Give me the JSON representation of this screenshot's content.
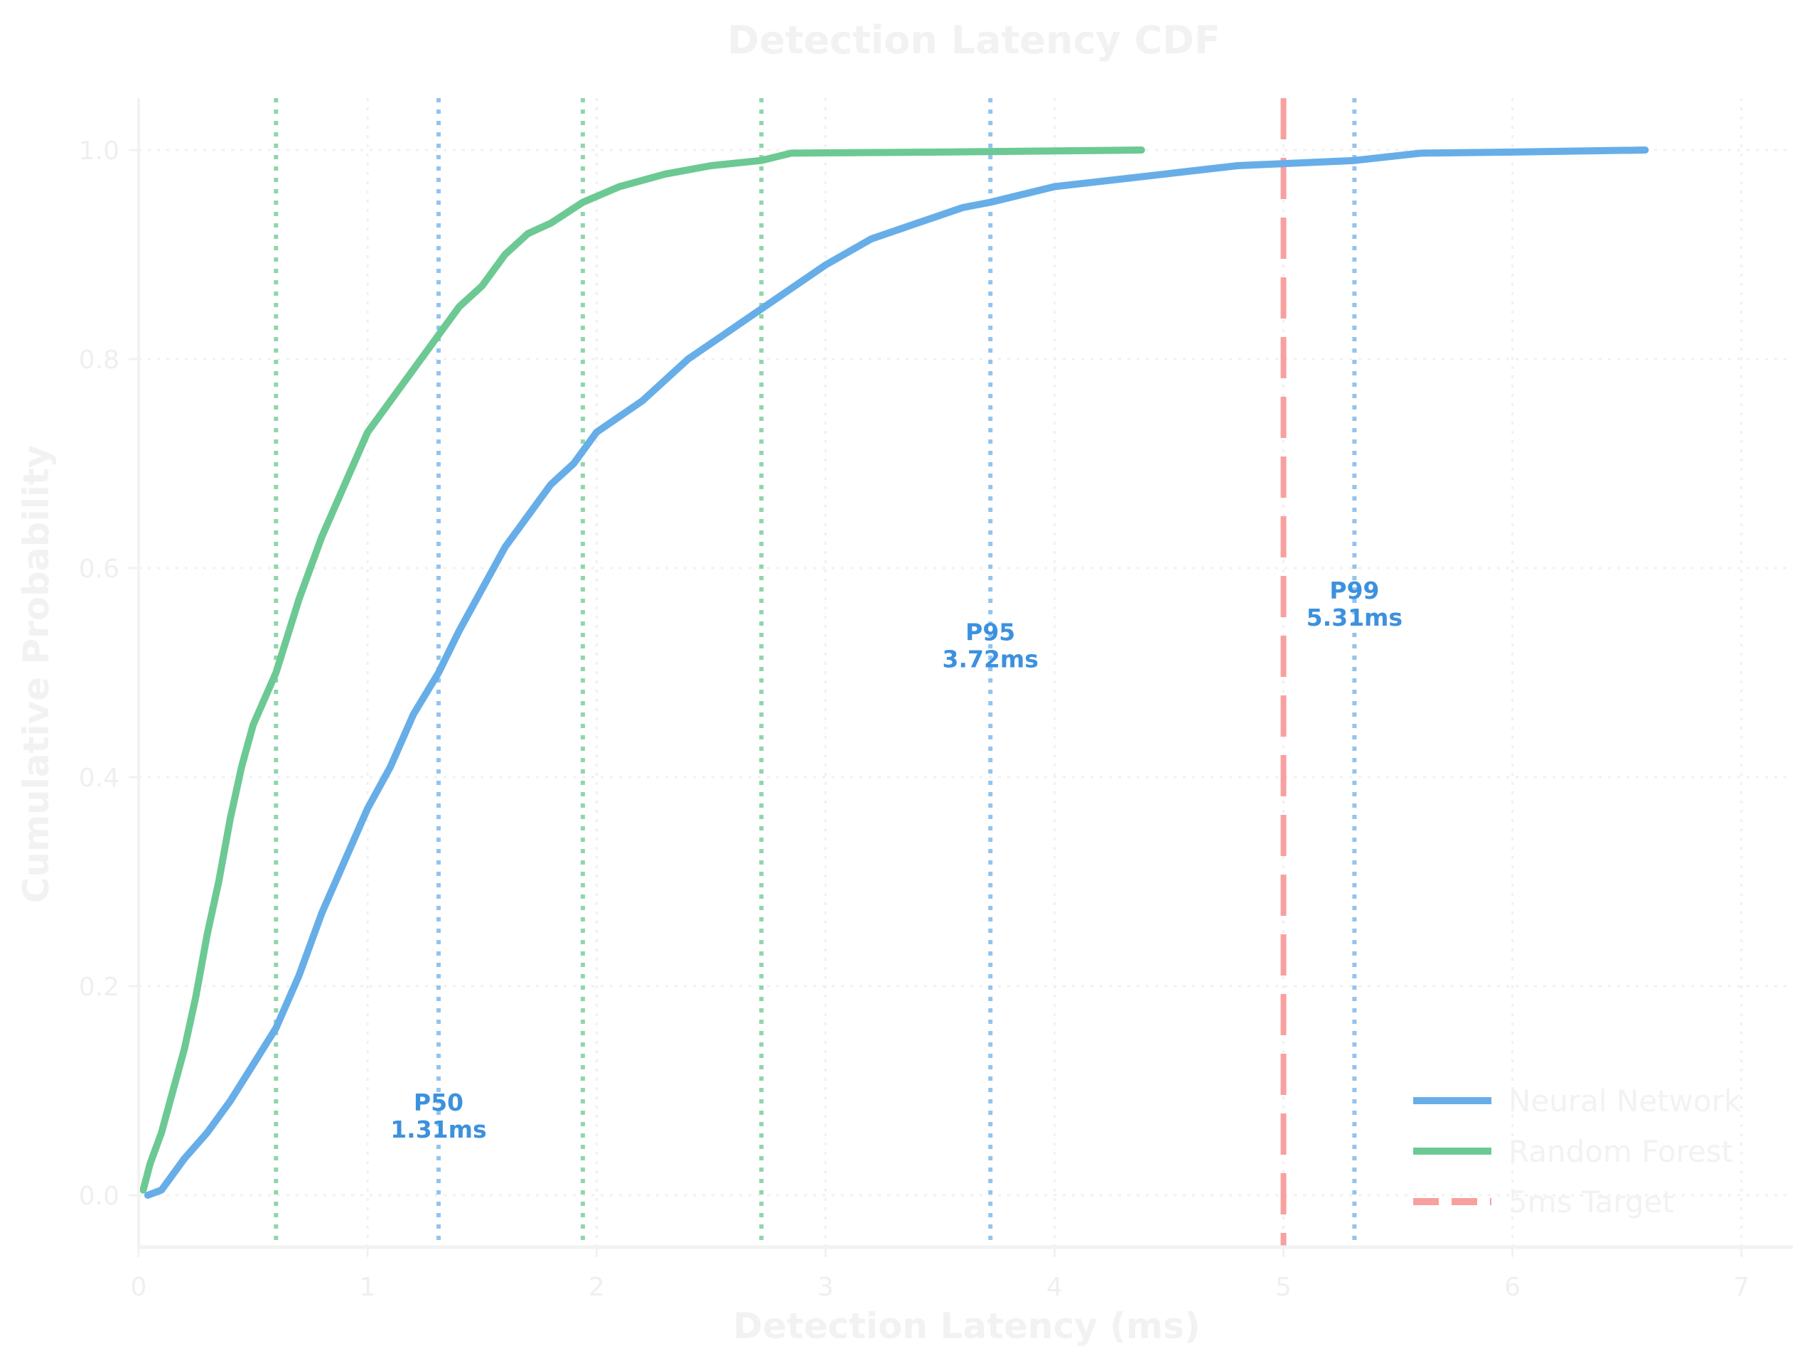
{
  "chart_data": {
    "type": "line",
    "title": "Detection Latency CDF",
    "xlabel": "Detection Latency (ms)",
    "ylabel": "Cumulative Probability",
    "xlim": [
      0,
      7.2
    ],
    "ylim": [
      -0.05,
      1.05
    ],
    "xticks": [
      "0",
      "1",
      "2",
      "3",
      "4",
      "5",
      "6",
      "7"
    ],
    "yticks": [
      "0.0",
      "0.2",
      "0.4",
      "0.6",
      "0.8",
      "1.0"
    ],
    "grid": true,
    "legend_position": "bottom-right",
    "series": [
      {
        "name": "Neural Network",
        "color": "#67aee8",
        "x": [
          0.04,
          0.1,
          0.15,
          0.2,
          0.3,
          0.4,
          0.5,
          0.6,
          0.7,
          0.8,
          0.9,
          1.0,
          1.1,
          1.2,
          1.31,
          1.4,
          1.5,
          1.6,
          1.7,
          1.8,
          1.9,
          2.0,
          2.2,
          2.4,
          2.6,
          2.8,
          3.0,
          3.2,
          3.4,
          3.6,
          3.72,
          4.0,
          4.4,
          4.8,
          5.31,
          5.6,
          6.0,
          6.58
        ],
        "y": [
          0,
          0.005,
          0.02,
          0.035,
          0.06,
          0.09,
          0.125,
          0.16,
          0.21,
          0.27,
          0.32,
          0.37,
          0.41,
          0.46,
          0.5,
          0.54,
          0.58,
          0.62,
          0.65,
          0.68,
          0.7,
          0.73,
          0.76,
          0.8,
          0.83,
          0.86,
          0.89,
          0.915,
          0.93,
          0.945,
          0.95,
          0.965,
          0.975,
          0.985,
          0.99,
          0.997,
          0.998,
          1.0
        ]
      },
      {
        "name": "Random Forest",
        "color": "#6cc993",
        "x": [
          0.02,
          0.05,
          0.1,
          0.15,
          0.2,
          0.25,
          0.3,
          0.35,
          0.4,
          0.45,
          0.5,
          0.6,
          0.7,
          0.8,
          0.9,
          1.0,
          1.1,
          1.2,
          1.3,
          1.4,
          1.5,
          1.6,
          1.7,
          1.8,
          1.94,
          2.1,
          2.3,
          2.5,
          2.72,
          2.85,
          3.5,
          4.38
        ],
        "y": [
          0.005,
          0.03,
          0.06,
          0.1,
          0.14,
          0.19,
          0.25,
          0.3,
          0.36,
          0.41,
          0.45,
          0.5,
          0.57,
          0.63,
          0.68,
          0.73,
          0.76,
          0.79,
          0.82,
          0.85,
          0.87,
          0.9,
          0.92,
          0.93,
          0.95,
          0.965,
          0.977,
          0.985,
          0.99,
          0.997,
          0.998,
          1.0
        ]
      }
    ],
    "reference_lines": [
      {
        "name": "5ms Target",
        "x": 5.0,
        "color": "#f8a0a0",
        "style": "dashed"
      }
    ],
    "percentile_lines": [
      {
        "series": "Random Forest",
        "x": 0.6,
        "color": "#8fd6a9"
      },
      {
        "series": "Random Forest",
        "x": 1.94,
        "color": "#8fd6a9"
      },
      {
        "series": "Random Forest",
        "x": 2.72,
        "color": "#8fd6a9"
      },
      {
        "series": "Neural Network",
        "x": 1.31,
        "color": "#92c4ef"
      },
      {
        "series": "Neural Network",
        "x": 3.72,
        "color": "#92c4ef"
      },
      {
        "series": "Neural Network",
        "x": 5.31,
        "color": "#92c4ef"
      }
    ],
    "annotations": [
      {
        "label": "P50",
        "value": "1.31ms",
        "x": 1.31,
        "y": 0.07
      },
      {
        "label": "P95",
        "value": "3.72ms",
        "x": 3.72,
        "y": 0.52
      },
      {
        "label": "P99",
        "value": "5.31ms",
        "x": 5.31,
        "y": 0.56
      }
    ]
  }
}
